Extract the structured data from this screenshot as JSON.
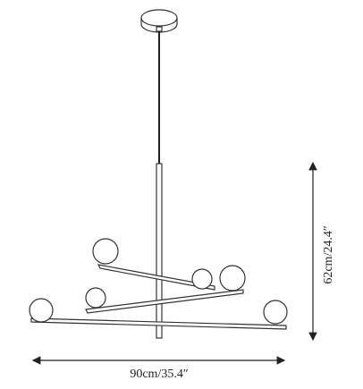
{
  "dimensions": {
    "width_label": "90cm/35.4″",
    "height_label": "62cm/24.4″"
  }
}
